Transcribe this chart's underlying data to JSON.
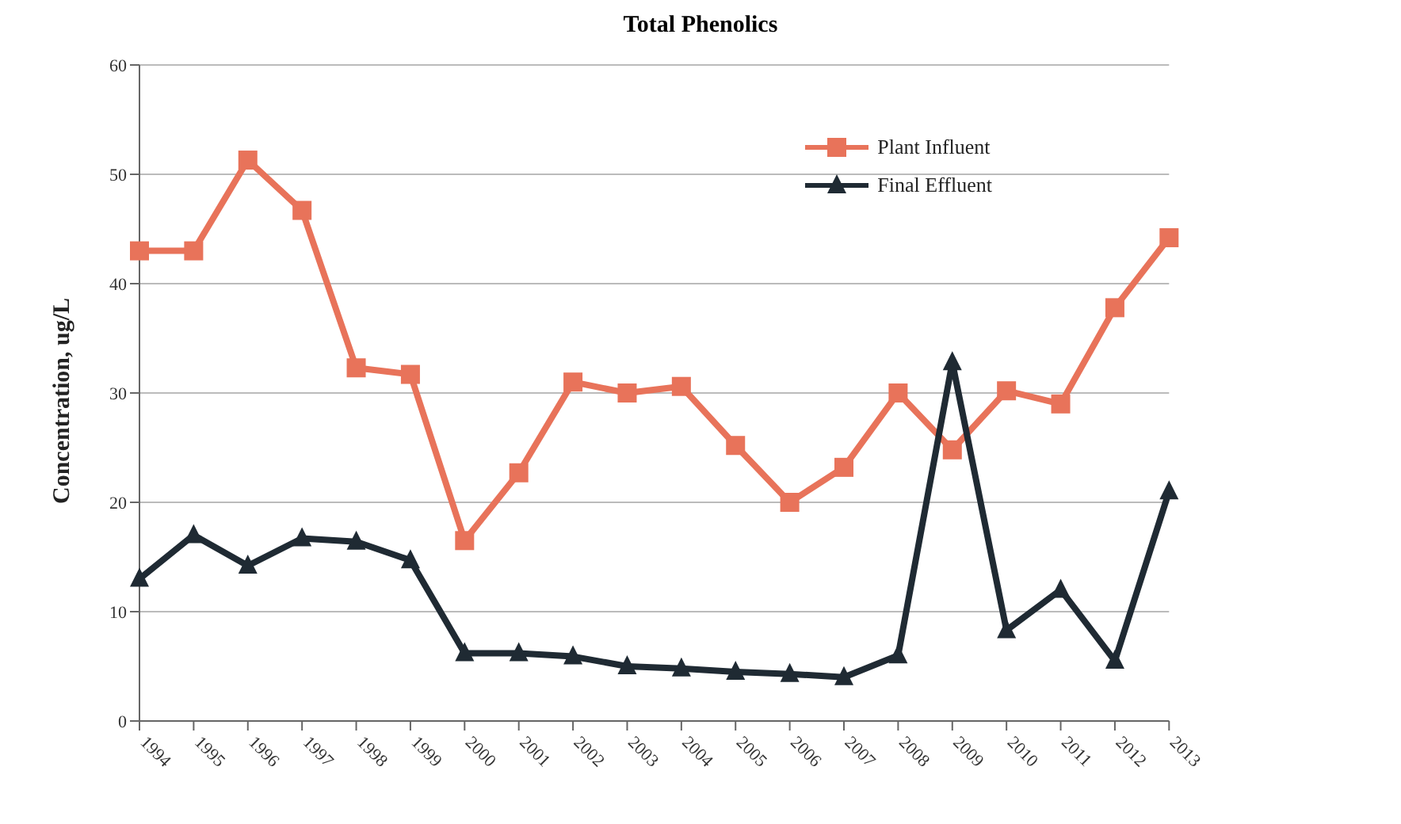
{
  "chart_data": {
    "type": "line",
    "title": "Total Phenolics",
    "ylabel": "Concentration, ug/L",
    "categories": [
      "1994",
      "1995",
      "1996",
      "1997",
      "1998",
      "1999",
      "2000",
      "2001",
      "2002",
      "2003",
      "2004",
      "2005",
      "2006",
      "2007",
      "2008",
      "2009",
      "2010",
      "2011",
      "2012",
      "2013"
    ],
    "series": [
      {
        "name": "Plant Influent",
        "color": "#e8735a",
        "marker": "square",
        "values": [
          43,
          43,
          51.3,
          46.7,
          32.3,
          31.7,
          16.5,
          22.7,
          31,
          30,
          30.6,
          25.2,
          20,
          23.2,
          30,
          24.8,
          30.2,
          29,
          37.8,
          44.2
        ]
      },
      {
        "name": "Final Effluent",
        "color": "#1f2a33",
        "marker": "triangle",
        "values": [
          13,
          17,
          14.2,
          16.7,
          16.4,
          14.7,
          6.2,
          6.2,
          5.9,
          5,
          4.8,
          4.5,
          4.3,
          4,
          6,
          32.8,
          8.3,
          12,
          5.5,
          21
        ]
      }
    ],
    "ylim": [
      0,
      60
    ],
    "yticks": [
      0,
      10,
      20,
      30,
      40,
      50,
      60
    ],
    "grid": "y",
    "legend": "top right",
    "line_style": "solid"
  }
}
